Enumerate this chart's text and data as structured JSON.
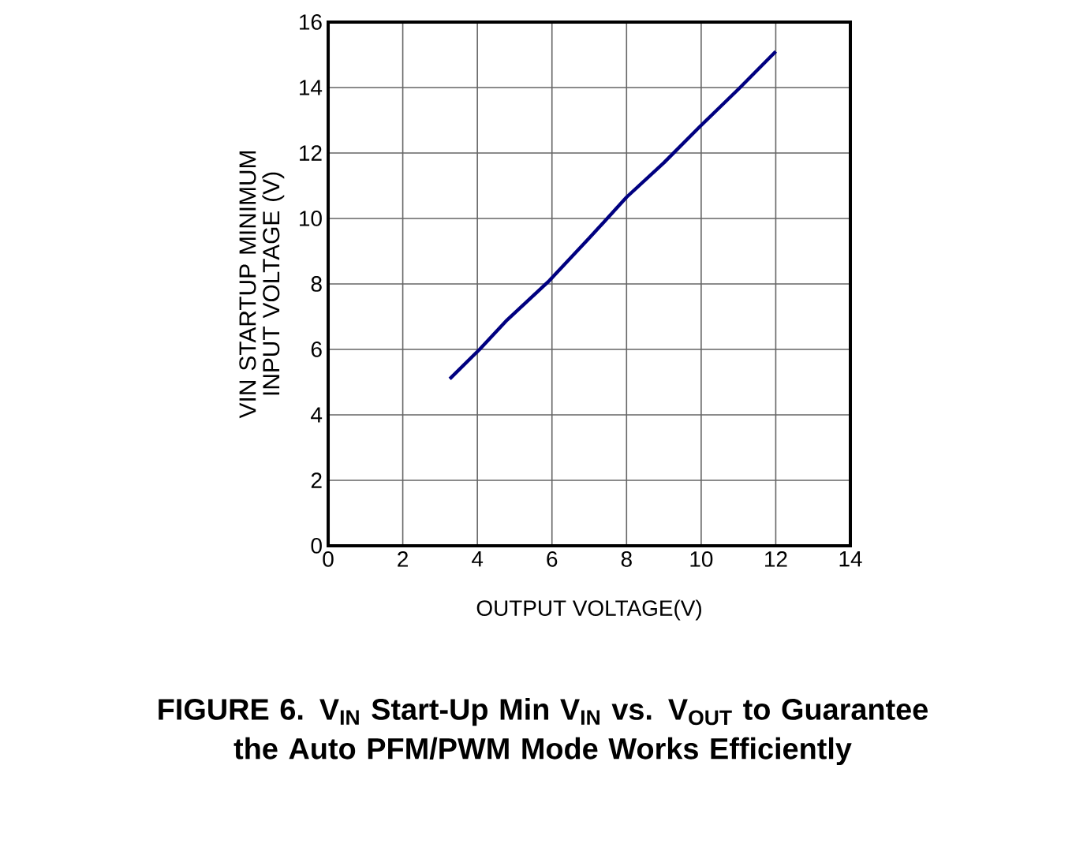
{
  "chart_data": {
    "type": "line",
    "title": "FIGURE 6. V$_{IN}$ Start-Up Min V$_{IN}$ vs. V$_{OUT}$ to Guarantee the Auto PFM/PWM Mode Works Efficiently",
    "xlabel": "OUTPUT VOLTAGE(V)",
    "ylabel": "VIN STARTUP MINIMUM INPUT VOLTAGE (V)",
    "x": [
      3.26,
      4.06,
      4.8,
      5.93,
      7.0,
      8.0,
      9.0,
      9.96,
      11.0,
      12.0
    ],
    "series": [
      {
        "color": "#000080",
        "values": [
          5.1,
          6.0,
          6.9,
          8.1,
          9.4,
          10.65,
          11.7,
          12.8,
          13.95,
          15.1
        ]
      }
    ],
    "xlim": [
      0,
      14
    ],
    "ylim": [
      0,
      16
    ],
    "xticks": [
      0,
      2,
      4,
      6,
      8,
      10,
      12,
      14
    ],
    "yticks": [
      0,
      2,
      4,
      6,
      8,
      10,
      12,
      14,
      16
    ],
    "grid": true,
    "marker": "none",
    "line_style": "solid"
  }
}
